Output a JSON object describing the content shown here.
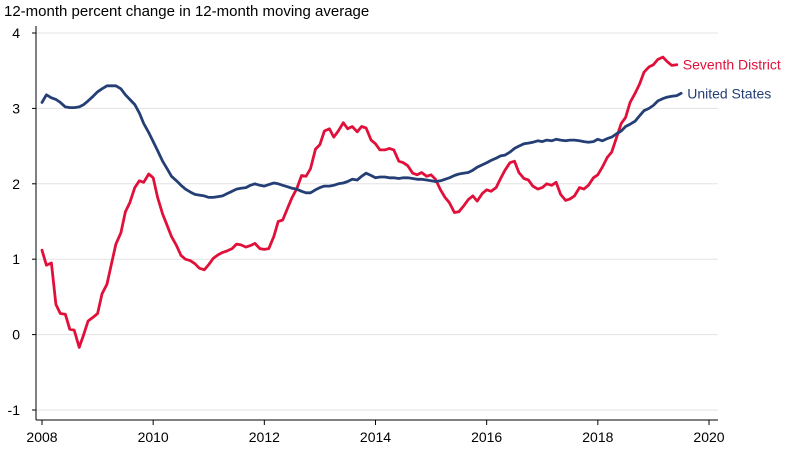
{
  "chart_data": {
    "type": "line",
    "title": "12-month percent change in 12-month moving average",
    "xlabel": "",
    "ylabel": "",
    "xlim": [
      2008,
      2020
    ],
    "ylim": [
      -1.1,
      4
    ],
    "x_ticks": [
      2008,
      2010,
      2012,
      2014,
      2016,
      2018,
      2020
    ],
    "x_tick_labels": [
      "2008",
      "2010",
      "2012",
      "2014",
      "2016",
      "2018",
      "2020"
    ],
    "y_ticks": [
      -1,
      0,
      1,
      2,
      3,
      4
    ],
    "y_tick_labels": [
      "-1",
      "0",
      "1",
      "2",
      "3",
      "4"
    ],
    "grid": "horizontal",
    "series": [
      {
        "name": "Seventh District",
        "color": "#e0103a",
        "points": [
          [
            2008.0,
            1.12
          ],
          [
            2008.08,
            0.92
          ],
          [
            2008.17,
            0.95
          ],
          [
            2008.25,
            0.4
          ],
          [
            2008.33,
            0.28
          ],
          [
            2008.42,
            0.27
          ],
          [
            2008.5,
            0.07
          ],
          [
            2008.58,
            0.06
          ],
          [
            2008.67,
            -0.17
          ],
          [
            2008.75,
            0.0
          ],
          [
            2008.83,
            0.18
          ],
          [
            2008.92,
            0.23
          ],
          [
            2009.0,
            0.28
          ],
          [
            2009.08,
            0.54
          ],
          [
            2009.17,
            0.67
          ],
          [
            2009.25,
            0.94
          ],
          [
            2009.33,
            1.2
          ],
          [
            2009.42,
            1.35
          ],
          [
            2009.5,
            1.63
          ],
          [
            2009.58,
            1.75
          ],
          [
            2009.67,
            1.95
          ],
          [
            2009.75,
            2.04
          ],
          [
            2009.83,
            2.02
          ],
          [
            2009.92,
            2.13
          ],
          [
            2010.0,
            2.08
          ],
          [
            2010.08,
            1.82
          ],
          [
            2010.17,
            1.6
          ],
          [
            2010.25,
            1.45
          ],
          [
            2010.33,
            1.3
          ],
          [
            2010.42,
            1.18
          ],
          [
            2010.5,
            1.05
          ],
          [
            2010.58,
            1.0
          ],
          [
            2010.67,
            0.98
          ],
          [
            2010.75,
            0.94
          ],
          [
            2010.83,
            0.88
          ],
          [
            2010.92,
            0.86
          ],
          [
            2011.0,
            0.93
          ],
          [
            2011.08,
            1.01
          ],
          [
            2011.17,
            1.06
          ],
          [
            2011.25,
            1.09
          ],
          [
            2011.33,
            1.11
          ],
          [
            2011.42,
            1.14
          ],
          [
            2011.5,
            1.2
          ],
          [
            2011.58,
            1.19
          ],
          [
            2011.67,
            1.16
          ],
          [
            2011.75,
            1.18
          ],
          [
            2011.83,
            1.21
          ],
          [
            2011.92,
            1.14
          ],
          [
            2012.0,
            1.13
          ],
          [
            2012.08,
            1.14
          ],
          [
            2012.17,
            1.3
          ],
          [
            2012.25,
            1.5
          ],
          [
            2012.33,
            1.52
          ],
          [
            2012.42,
            1.68
          ],
          [
            2012.5,
            1.82
          ],
          [
            2012.58,
            1.93
          ],
          [
            2012.67,
            2.11
          ],
          [
            2012.75,
            2.1
          ],
          [
            2012.83,
            2.2
          ],
          [
            2012.92,
            2.46
          ],
          [
            2013.0,
            2.52
          ],
          [
            2013.08,
            2.7
          ],
          [
            2013.17,
            2.73
          ],
          [
            2013.25,
            2.62
          ],
          [
            2013.33,
            2.7
          ],
          [
            2013.42,
            2.81
          ],
          [
            2013.5,
            2.73
          ],
          [
            2013.58,
            2.76
          ],
          [
            2013.67,
            2.69
          ],
          [
            2013.75,
            2.76
          ],
          [
            2013.83,
            2.74
          ],
          [
            2013.92,
            2.58
          ],
          [
            2014.0,
            2.53
          ],
          [
            2014.08,
            2.45
          ],
          [
            2014.17,
            2.45
          ],
          [
            2014.25,
            2.47
          ],
          [
            2014.33,
            2.45
          ],
          [
            2014.42,
            2.3
          ],
          [
            2014.5,
            2.28
          ],
          [
            2014.58,
            2.24
          ],
          [
            2014.67,
            2.14
          ],
          [
            2014.75,
            2.12
          ],
          [
            2014.83,
            2.15
          ],
          [
            2014.92,
            2.1
          ],
          [
            2015.0,
            2.12
          ],
          [
            2015.08,
            2.06
          ],
          [
            2015.17,
            1.92
          ],
          [
            2015.25,
            1.82
          ],
          [
            2015.33,
            1.75
          ],
          [
            2015.42,
            1.62
          ],
          [
            2015.5,
            1.63
          ],
          [
            2015.58,
            1.7
          ],
          [
            2015.67,
            1.79
          ],
          [
            2015.75,
            1.84
          ],
          [
            2015.83,
            1.77
          ],
          [
            2015.92,
            1.87
          ],
          [
            2016.0,
            1.92
          ],
          [
            2016.08,
            1.9
          ],
          [
            2016.17,
            1.95
          ],
          [
            2016.25,
            2.07
          ],
          [
            2016.33,
            2.18
          ],
          [
            2016.42,
            2.28
          ],
          [
            2016.5,
            2.3
          ],
          [
            2016.58,
            2.15
          ],
          [
            2016.67,
            2.07
          ],
          [
            2016.75,
            2.05
          ],
          [
            2016.83,
            1.97
          ],
          [
            2016.92,
            1.93
          ],
          [
            2017.0,
            1.95
          ],
          [
            2017.08,
            2.0
          ],
          [
            2017.17,
            1.98
          ],
          [
            2017.25,
            2.02
          ],
          [
            2017.33,
            1.86
          ],
          [
            2017.42,
            1.78
          ],
          [
            2017.5,
            1.8
          ],
          [
            2017.58,
            1.84
          ],
          [
            2017.67,
            1.95
          ],
          [
            2017.75,
            1.93
          ],
          [
            2017.83,
            1.98
          ],
          [
            2017.92,
            2.08
          ],
          [
            2018.0,
            2.12
          ],
          [
            2018.08,
            2.22
          ],
          [
            2018.17,
            2.35
          ],
          [
            2018.25,
            2.42
          ],
          [
            2018.33,
            2.6
          ],
          [
            2018.42,
            2.8
          ],
          [
            2018.5,
            2.88
          ],
          [
            2018.58,
            3.08
          ],
          [
            2018.67,
            3.2
          ],
          [
            2018.75,
            3.32
          ],
          [
            2018.83,
            3.48
          ],
          [
            2018.92,
            3.55
          ],
          [
            2019.0,
            3.58
          ],
          [
            2019.08,
            3.65
          ],
          [
            2019.17,
            3.68
          ],
          [
            2019.25,
            3.62
          ],
          [
            2019.33,
            3.57
          ],
          [
            2019.42,
            3.58
          ]
        ]
      },
      {
        "name": "United States",
        "color": "#243f75",
        "points": [
          [
            2008.0,
            3.08
          ],
          [
            2008.08,
            3.18
          ],
          [
            2008.17,
            3.14
          ],
          [
            2008.25,
            3.12
          ],
          [
            2008.33,
            3.08
          ],
          [
            2008.42,
            3.02
          ],
          [
            2008.5,
            3.01
          ],
          [
            2008.58,
            3.01
          ],
          [
            2008.67,
            3.02
          ],
          [
            2008.75,
            3.05
          ],
          [
            2008.83,
            3.1
          ],
          [
            2008.92,
            3.16
          ],
          [
            2009.0,
            3.22
          ],
          [
            2009.08,
            3.26
          ],
          [
            2009.17,
            3.3
          ],
          [
            2009.25,
            3.3
          ],
          [
            2009.33,
            3.3
          ],
          [
            2009.42,
            3.26
          ],
          [
            2009.5,
            3.18
          ],
          [
            2009.58,
            3.12
          ],
          [
            2009.67,
            3.05
          ],
          [
            2009.75,
            2.94
          ],
          [
            2009.83,
            2.8
          ],
          [
            2009.92,
            2.68
          ],
          [
            2010.0,
            2.56
          ],
          [
            2010.08,
            2.44
          ],
          [
            2010.17,
            2.3
          ],
          [
            2010.25,
            2.2
          ],
          [
            2010.33,
            2.1
          ],
          [
            2010.42,
            2.04
          ],
          [
            2010.5,
            1.98
          ],
          [
            2010.58,
            1.93
          ],
          [
            2010.67,
            1.89
          ],
          [
            2010.75,
            1.86
          ],
          [
            2010.83,
            1.85
          ],
          [
            2010.92,
            1.84
          ],
          [
            2011.0,
            1.82
          ],
          [
            2011.08,
            1.82
          ],
          [
            2011.17,
            1.83
          ],
          [
            2011.25,
            1.84
          ],
          [
            2011.33,
            1.87
          ],
          [
            2011.42,
            1.9
          ],
          [
            2011.5,
            1.93
          ],
          [
            2011.58,
            1.94
          ],
          [
            2011.67,
            1.95
          ],
          [
            2011.75,
            1.98
          ],
          [
            2011.83,
            2.0
          ],
          [
            2011.92,
            1.98
          ],
          [
            2012.0,
            1.97
          ],
          [
            2012.08,
            1.99
          ],
          [
            2012.17,
            2.01
          ],
          [
            2012.25,
            2.0
          ],
          [
            2012.33,
            1.98
          ],
          [
            2012.42,
            1.96
          ],
          [
            2012.5,
            1.94
          ],
          [
            2012.58,
            1.93
          ],
          [
            2012.67,
            1.9
          ],
          [
            2012.75,
            1.88
          ],
          [
            2012.83,
            1.88
          ],
          [
            2012.92,
            1.92
          ],
          [
            2013.0,
            1.95
          ],
          [
            2013.08,
            1.97
          ],
          [
            2013.17,
            1.97
          ],
          [
            2013.25,
            1.98
          ],
          [
            2013.33,
            2.0
          ],
          [
            2013.42,
            2.01
          ],
          [
            2013.5,
            2.03
          ],
          [
            2013.58,
            2.06
          ],
          [
            2013.67,
            2.05
          ],
          [
            2013.75,
            2.1
          ],
          [
            2013.83,
            2.14
          ],
          [
            2013.92,
            2.11
          ],
          [
            2014.0,
            2.08
          ],
          [
            2014.08,
            2.09
          ],
          [
            2014.17,
            2.09
          ],
          [
            2014.25,
            2.08
          ],
          [
            2014.33,
            2.08
          ],
          [
            2014.42,
            2.07
          ],
          [
            2014.5,
            2.08
          ],
          [
            2014.58,
            2.08
          ],
          [
            2014.67,
            2.07
          ],
          [
            2014.75,
            2.06
          ],
          [
            2014.83,
            2.06
          ],
          [
            2014.92,
            2.05
          ],
          [
            2015.0,
            2.04
          ],
          [
            2015.08,
            2.03
          ],
          [
            2015.17,
            2.04
          ],
          [
            2015.25,
            2.06
          ],
          [
            2015.33,
            2.08
          ],
          [
            2015.42,
            2.11
          ],
          [
            2015.5,
            2.13
          ],
          [
            2015.58,
            2.14
          ],
          [
            2015.67,
            2.15
          ],
          [
            2015.75,
            2.18
          ],
          [
            2015.83,
            2.22
          ],
          [
            2015.92,
            2.25
          ],
          [
            2016.0,
            2.28
          ],
          [
            2016.08,
            2.31
          ],
          [
            2016.17,
            2.34
          ],
          [
            2016.25,
            2.37
          ],
          [
            2016.33,
            2.38
          ],
          [
            2016.42,
            2.42
          ],
          [
            2016.5,
            2.47
          ],
          [
            2016.58,
            2.5
          ],
          [
            2016.67,
            2.53
          ],
          [
            2016.75,
            2.54
          ],
          [
            2016.83,
            2.55
          ],
          [
            2016.92,
            2.57
          ],
          [
            2017.0,
            2.56
          ],
          [
            2017.08,
            2.58
          ],
          [
            2017.17,
            2.57
          ],
          [
            2017.25,
            2.59
          ],
          [
            2017.33,
            2.58
          ],
          [
            2017.42,
            2.57
          ],
          [
            2017.5,
            2.58
          ],
          [
            2017.58,
            2.58
          ],
          [
            2017.67,
            2.57
          ],
          [
            2017.75,
            2.56
          ],
          [
            2017.83,
            2.55
          ],
          [
            2017.92,
            2.56
          ],
          [
            2018.0,
            2.59
          ],
          [
            2018.08,
            2.57
          ],
          [
            2018.17,
            2.6
          ],
          [
            2018.25,
            2.62
          ],
          [
            2018.33,
            2.66
          ],
          [
            2018.42,
            2.7
          ],
          [
            2018.5,
            2.76
          ],
          [
            2018.58,
            2.79
          ],
          [
            2018.67,
            2.83
          ],
          [
            2018.75,
            2.9
          ],
          [
            2018.83,
            2.97
          ],
          [
            2018.92,
            3.0
          ],
          [
            2019.0,
            3.04
          ],
          [
            2019.08,
            3.1
          ],
          [
            2019.17,
            3.13
          ],
          [
            2019.25,
            3.15
          ],
          [
            2019.33,
            3.16
          ],
          [
            2019.42,
            3.17
          ],
          [
            2019.5,
            3.2
          ]
        ]
      }
    ]
  }
}
